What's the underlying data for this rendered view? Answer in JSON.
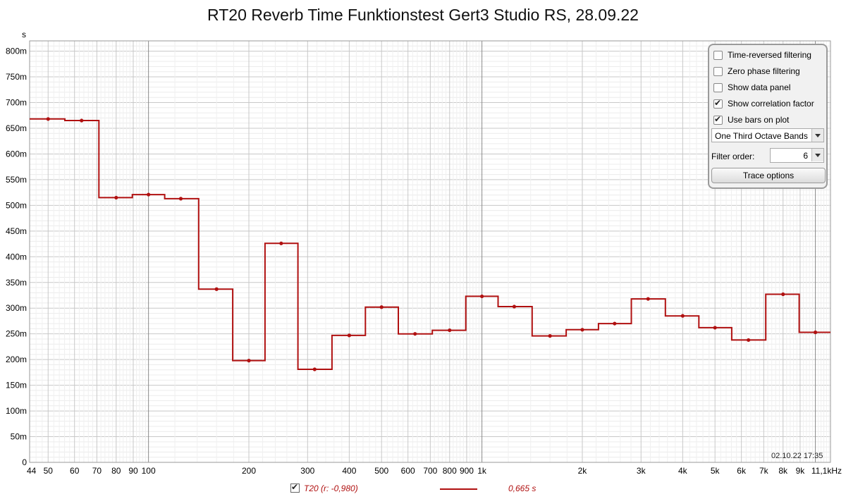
{
  "chart_title": "RT20 Reverb Time Funktionstest Gert3 Studio RS, 28.09.22",
  "chart_data": {
    "type": "line",
    "title": "RT20 Reverb Time Funktionstest Gert3 Studio RS, 28.09.22",
    "ylabel": "s",
    "xlabel": "",
    "x_scale": "log",
    "xlim": [
      44,
      11100
    ],
    "ylim": [
      0,
      0.82
    ],
    "grid": true,
    "y_ticks": [
      "0",
      "50m",
      "100m",
      "150m",
      "200m",
      "250m",
      "300m",
      "350m",
      "400m",
      "450m",
      "500m",
      "550m",
      "600m",
      "650m",
      "700m",
      "750m",
      "800m"
    ],
    "x_ticks": [
      {
        "v": 44,
        "l": "44"
      },
      {
        "v": 50,
        "l": "50"
      },
      {
        "v": 60,
        "l": "60"
      },
      {
        "v": 70,
        "l": "70"
      },
      {
        "v": 80,
        "l": "80"
      },
      {
        "v": 90,
        "l": "90"
      },
      {
        "v": 100,
        "l": "100"
      },
      {
        "v": 200,
        "l": "200"
      },
      {
        "v": 300,
        "l": "300"
      },
      {
        "v": 400,
        "l": "400"
      },
      {
        "v": 500,
        "l": "500"
      },
      {
        "v": 600,
        "l": "600"
      },
      {
        "v": 700,
        "l": "700"
      },
      {
        "v": 800,
        "l": "800"
      },
      {
        "v": 900,
        "l": "900"
      },
      {
        "v": 1000,
        "l": "1k"
      },
      {
        "v": 2000,
        "l": "2k"
      },
      {
        "v": 3000,
        "l": "3k"
      },
      {
        "v": 4000,
        "l": "4k"
      },
      {
        "v": 5000,
        "l": "5k"
      },
      {
        "v": 6000,
        "l": "6k"
      },
      {
        "v": 7000,
        "l": "7k"
      },
      {
        "v": 8000,
        "l": "8k"
      },
      {
        "v": 9000,
        "l": "9k"
      },
      {
        "v": 11100,
        "l": "11,1kHz"
      }
    ],
    "series": [
      {
        "name": "T20",
        "color": "#b01010",
        "band_centers_hz": [
          50,
          63,
          80,
          100,
          125,
          160,
          200,
          250,
          315,
          400,
          500,
          630,
          800,
          1000,
          1250,
          1600,
          2000,
          2500,
          3150,
          4000,
          5000,
          6300,
          8000,
          10000
        ],
        "values_s": [
          0.668,
          0.665,
          0.515,
          0.521,
          0.513,
          0.337,
          0.198,
          0.426,
          0.181,
          0.247,
          0.302,
          0.25,
          0.257,
          0.323,
          0.303,
          0.246,
          0.258,
          0.27,
          0.318,
          0.285,
          0.262,
          0.238,
          0.327,
          0.253
        ]
      }
    ]
  },
  "panel": {
    "options": [
      {
        "label": "Time-reversed filtering",
        "checked": false
      },
      {
        "label": "Zero phase filtering",
        "checked": false
      },
      {
        "label": "Show data panel",
        "checked": false
      },
      {
        "label": "Show correlation factor",
        "checked": true
      },
      {
        "label": "Use bars on plot",
        "checked": true
      }
    ],
    "bands_select": "One Third Octave Bands",
    "filter_order_label": "Filter order:",
    "filter_order_value": "6",
    "trace_options_label": "Trace options"
  },
  "timestamp": "02.10.22 17:35",
  "legend": {
    "label": "T20 (r: -0,980)",
    "value": "0,665 s",
    "checked": true
  }
}
